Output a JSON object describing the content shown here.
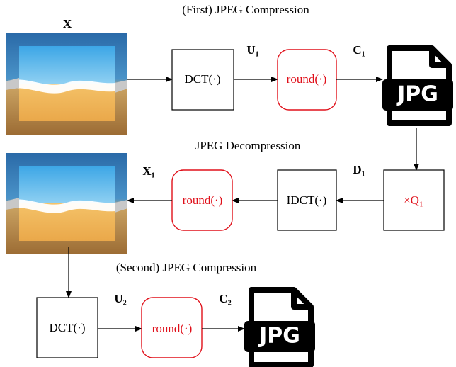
{
  "stage1": {
    "title": "(First) JPEG Compression",
    "input": "X",
    "transform": "DCT(·)",
    "coeff": "U₁",
    "quantize": "round(·)",
    "output": "C₁",
    "file": "JPG"
  },
  "stage2": {
    "title": "JPEG Decompression",
    "dequant_label": "D₁",
    "dequant": "×Q₁",
    "inverse": "IDCT(·)",
    "round": "round(·)",
    "output": "X₁"
  },
  "stage3": {
    "title": "(Second) JPEG Compression",
    "transform": "DCT(·)",
    "coeff": "U₂",
    "quantize": "round(·)",
    "output": "C₂",
    "file": "JPG"
  }
}
